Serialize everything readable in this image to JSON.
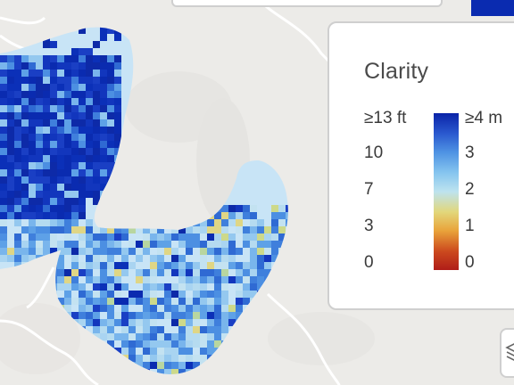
{
  "colors": {
    "background": "#ecebe8",
    "road": "#ffffff",
    "lake": "#c8e4f6",
    "deep": "#0a2bb0"
  },
  "legend": {
    "title": "Clarity",
    "ft_labels": [
      "≥13 ft",
      "10",
      "7",
      "3",
      "0"
    ],
    "m_labels": [
      "≥4 m",
      "3",
      "2",
      "1",
      "0"
    ],
    "gradient": [
      "#0a23a8",
      "#2a59cf",
      "#4f93e3",
      "#86c5ef",
      "#bde3ef",
      "#e2d77b",
      "#e9a33a",
      "#cc4a1e",
      "#b01d18"
    ]
  },
  "icons": {
    "layers": "layers-icon"
  }
}
